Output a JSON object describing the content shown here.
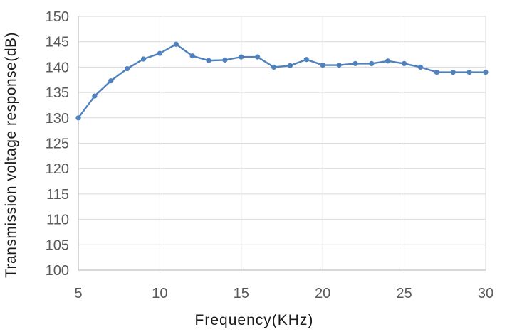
{
  "chart_data": {
    "type": "line",
    "title": "",
    "xlabel": "Frequency(KHz)",
    "ylabel": "Transmission voltage response(dB)",
    "x": [
      5,
      6,
      7,
      8,
      9,
      10,
      11,
      12,
      13,
      14,
      15,
      16,
      17,
      18,
      19,
      20,
      21,
      22,
      23,
      24,
      25,
      26,
      27,
      28,
      29,
      30
    ],
    "series": [
      {
        "name": "Transmission voltage response",
        "values": [
          130.0,
          134.3,
          137.3,
          139.7,
          141.6,
          142.7,
          144.5,
          142.2,
          141.3,
          141.4,
          142.0,
          142.0,
          140.0,
          140.3,
          141.5,
          140.4,
          140.4,
          140.7,
          140.7,
          141.2,
          140.7,
          140.0,
          139.0,
          139.0,
          139.0,
          139.0
        ]
      }
    ],
    "xlim": [
      5,
      30
    ],
    "ylim": [
      100,
      150
    ],
    "x_ticks": [
      5,
      10,
      15,
      20,
      25,
      30
    ],
    "y_ticks": [
      100,
      105,
      110,
      115,
      120,
      125,
      130,
      135,
      140,
      145,
      150
    ],
    "grid": true,
    "legend_position": "none",
    "marker": "circle",
    "colors": {
      "line": "#4F81BD",
      "gridline": "#D9D9D9",
      "axis_line": "#BFBFBF",
      "tick_label": "#595959",
      "axis_title": "#1a1a1a",
      "background": "#FFFFFF"
    }
  }
}
